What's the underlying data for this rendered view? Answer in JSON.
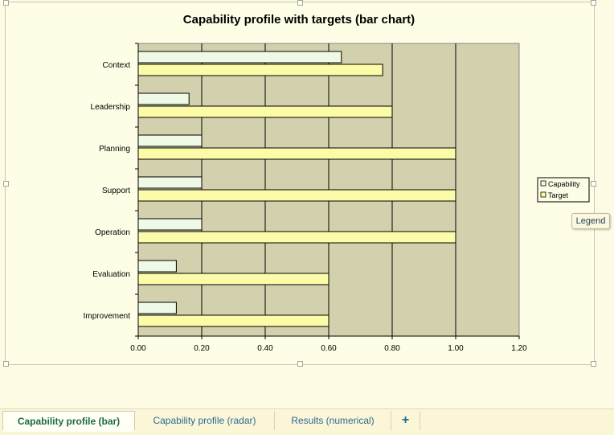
{
  "chart_data": {
    "type": "bar",
    "orientation": "horizontal",
    "title": "Capability profile with targets (bar chart)",
    "categories": [
      "Context",
      "Leadership",
      "Planning",
      "Support",
      "Operation",
      "Evaluation",
      "Improvement"
    ],
    "series": [
      {
        "name": "Capability",
        "values": [
          0.64,
          0.16,
          0.2,
          0.2,
          0.2,
          0.12,
          0.12
        ],
        "color": "#eefae6"
      },
      {
        "name": "Target",
        "values": [
          0.77,
          0.8,
          1.0,
          1.0,
          1.0,
          0.6,
          0.6
        ],
        "color": "#fcfca8"
      }
    ],
    "xlim": [
      0,
      1.2
    ],
    "xticks": [
      "0.00",
      "0.20",
      "0.40",
      "0.60",
      "0.80",
      "1.00",
      "1.20"
    ],
    "plot_background": "#d3d0ad",
    "grid": true,
    "legend_position": "right"
  },
  "tooltip": {
    "text": "Legend"
  },
  "tabs": [
    {
      "label": "Capability profile (bar)",
      "active": true
    },
    {
      "label": "Capability profile (radar)",
      "active": false
    },
    {
      "label": "Results (numerical)",
      "active": false
    },
    {
      "label": "+",
      "active": false
    }
  ],
  "colors": {
    "accent": "#1a6a4a",
    "page_bg": "#fdfbe4"
  }
}
